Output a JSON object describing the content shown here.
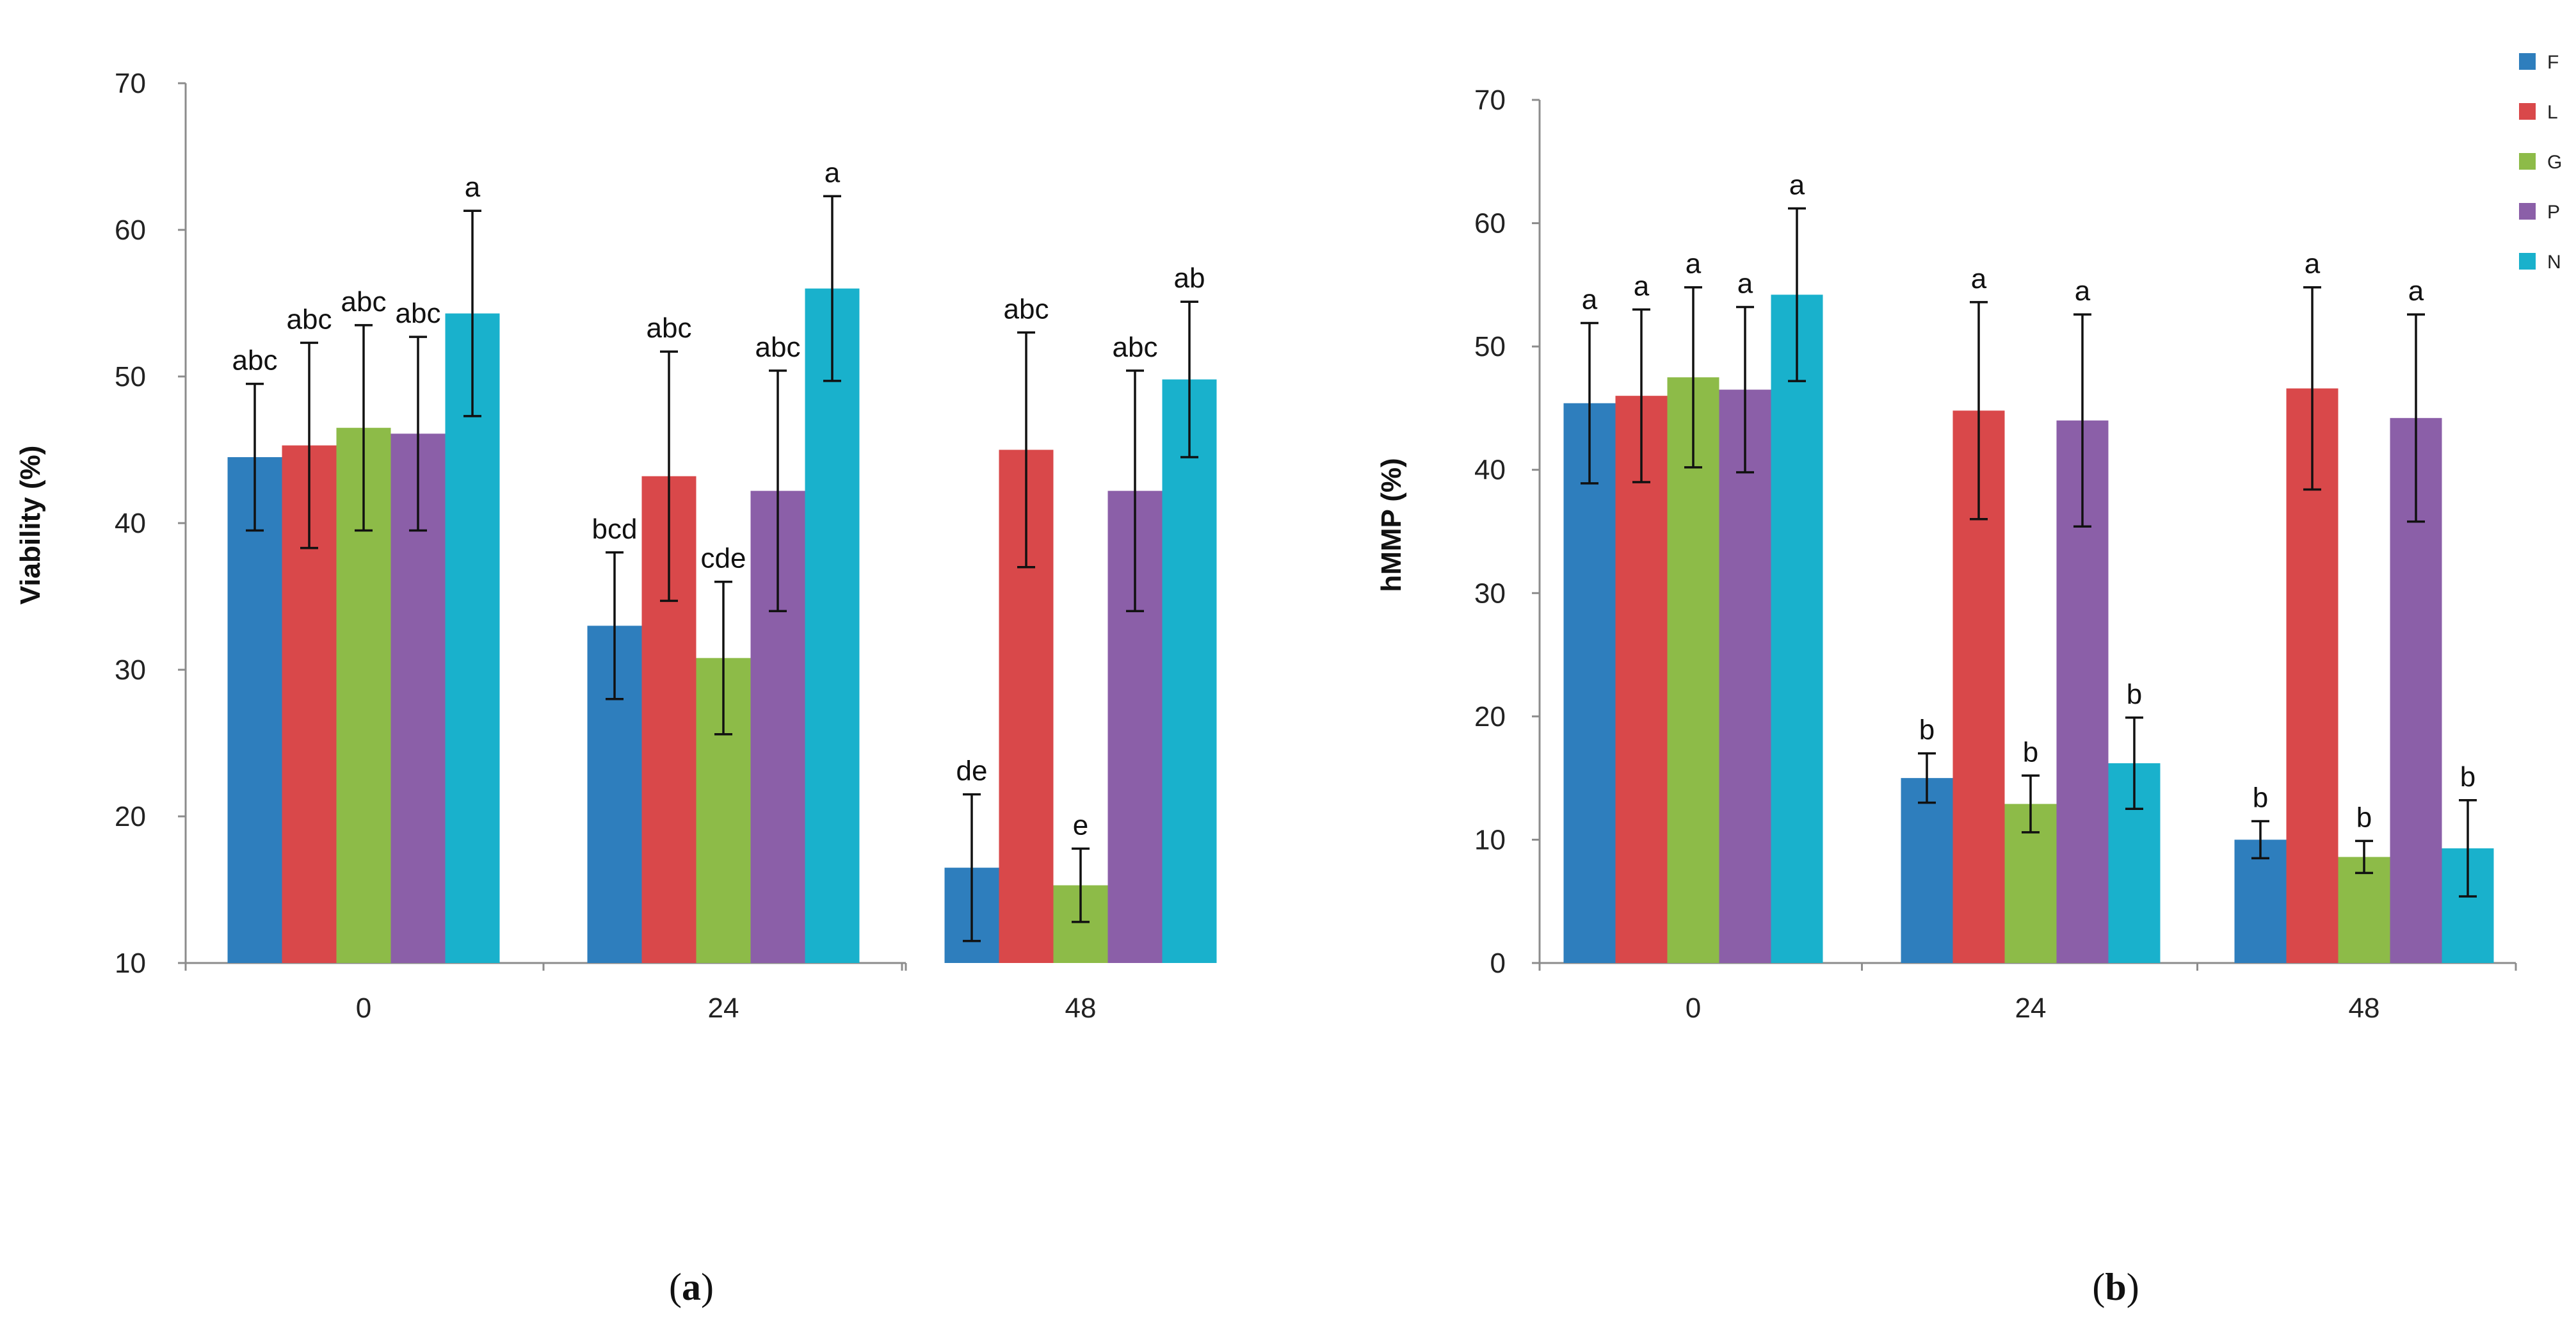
{
  "chart_data": [
    {
      "type": "bar",
      "panel_label": "a",
      "title": "",
      "xlabel": "",
      "ylabel": "Viability (%)",
      "ylim": [
        10,
        70
      ],
      "yticks": [
        10,
        20,
        30,
        40,
        50,
        60,
        70
      ],
      "categories": [
        "0",
        "24",
        "48"
      ],
      "series": [
        {
          "name": "F",
          "color": "#2e7ebd",
          "values": [
            44.5,
            33.0,
            16.5
          ],
          "errors": [
            5.0,
            5.0,
            5.0
          ],
          "labels": [
            "abc",
            "bcd",
            "de"
          ]
        },
        {
          "name": "L",
          "color": "#d9484a",
          "values": [
            45.3,
            43.2,
            45.0
          ],
          "errors": [
            7.0,
            8.5,
            8.0
          ],
          "labels": [
            "abc",
            "abc",
            "abc"
          ]
        },
        {
          "name": "G",
          "color": "#8dbb48",
          "values": [
            46.5,
            30.8,
            15.3
          ],
          "errors": [
            7.0,
            5.2,
            2.5
          ],
          "labels": [
            "abc",
            "cde",
            "e"
          ]
        },
        {
          "name": "P",
          "color": "#8b5fa8",
          "values": [
            46.1,
            42.2,
            42.2
          ],
          "errors": [
            6.6,
            8.2,
            8.2
          ],
          "labels": [
            "abc",
            "abc",
            "abc"
          ]
        },
        {
          "name": "N",
          "color": "#19b1cc",
          "values": [
            54.3,
            56.0,
            49.8
          ],
          "errors": [
            7.0,
            6.3,
            5.3
          ],
          "labels": [
            "a",
            "a",
            "ab"
          ]
        }
      ],
      "legend": "none",
      "grid": false
    },
    {
      "type": "bar",
      "panel_label": "b",
      "title": "",
      "xlabel": "",
      "ylabel": "hMMP (%)",
      "ylim": [
        0,
        70
      ],
      "yticks": [
        0,
        10,
        20,
        30,
        40,
        50,
        60,
        70
      ],
      "categories": [
        "0",
        "24",
        "48"
      ],
      "series": [
        {
          "name": "F",
          "color": "#2e7ebd",
          "values": [
            45.4,
            15.0,
            10.0
          ],
          "errors": [
            6.5,
            2.0,
            1.5
          ],
          "labels": [
            "a",
            "b",
            "b"
          ]
        },
        {
          "name": "L",
          "color": "#d9484a",
          "values": [
            46.0,
            44.8,
            46.6
          ],
          "errors": [
            7.0,
            8.8,
            8.2
          ],
          "labels": [
            "a",
            "a",
            "a"
          ]
        },
        {
          "name": "G",
          "color": "#8dbb48",
          "values": [
            47.5,
            12.9,
            8.6
          ],
          "errors": [
            7.3,
            2.3,
            1.3
          ],
          "labels": [
            "a",
            "b",
            "b"
          ]
        },
        {
          "name": "P",
          "color": "#8b5fa8",
          "values": [
            46.5,
            44.0,
            44.2
          ],
          "errors": [
            6.7,
            8.6,
            8.4
          ],
          "labels": [
            "a",
            "a",
            "a"
          ]
        },
        {
          "name": "N",
          "color": "#19b1cc",
          "values": [
            54.2,
            16.2,
            9.3
          ],
          "errors": [
            7.0,
            3.7,
            3.9
          ],
          "labels": [
            "a",
            "b",
            "b"
          ]
        }
      ],
      "legend": "top-right",
      "grid": false
    }
  ]
}
